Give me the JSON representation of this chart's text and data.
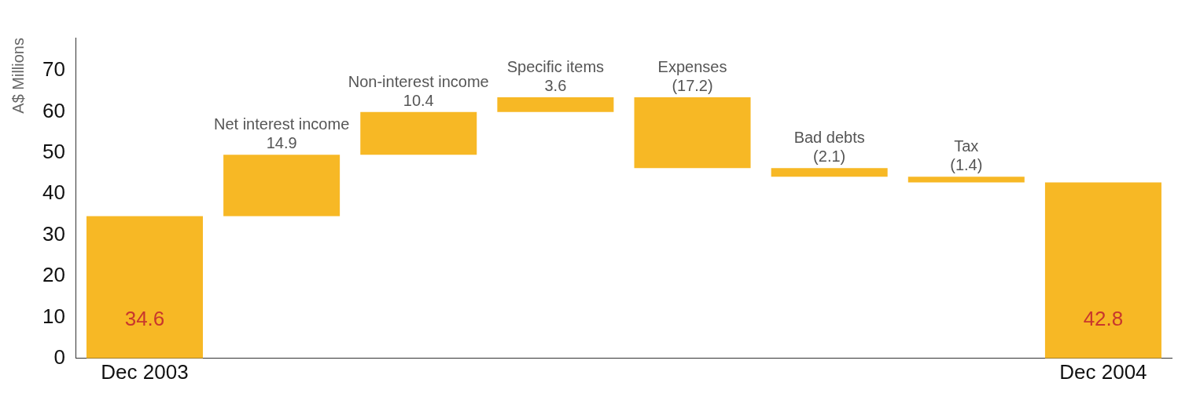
{
  "chart_data": {
    "type": "bar",
    "ylabel": "A$ Millions",
    "categories": [
      "Dec 2003",
      "Net interest income",
      "Non-interest income",
      "Specific items",
      "Expenses",
      "Bad debts",
      "Tax",
      "Dec 2004"
    ],
    "values": [
      34.6,
      14.9,
      10.4,
      3.6,
      -17.2,
      -2.1,
      -1.4,
      42.8
    ],
    "base": [
      0,
      34.6,
      49.5,
      59.9,
      63.5,
      46.3,
      44.2,
      0
    ],
    "value_labels": [
      "34.6",
      "14.9",
      "10.4",
      "3.6",
      "(17.2)",
      "(2.1)",
      "(1.4)",
      "42.8"
    ],
    "color": "#f7b825",
    "ylim": [
      0,
      78
    ],
    "yticks": [
      0,
      10,
      20,
      30,
      40,
      50,
      60,
      70
    ],
    "grid": false,
    "legend": false
  }
}
